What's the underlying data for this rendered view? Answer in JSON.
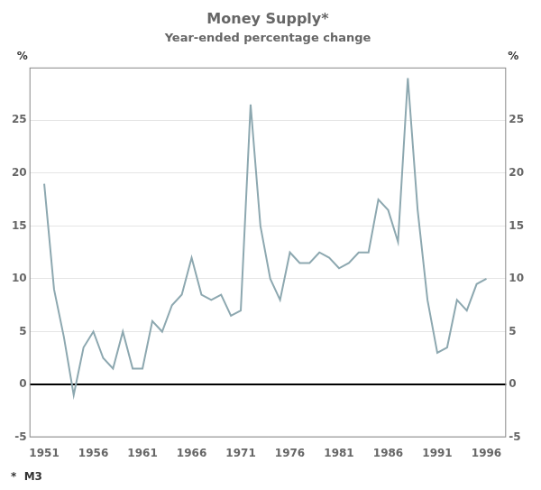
{
  "chart_data": {
    "type": "line",
    "title": "Money Supply*",
    "subtitle": "Year-ended percentage change",
    "annotations": [
      "*  M3"
    ],
    "ylabel": "%",
    "y2label": "%",
    "color": "#8da8b0",
    "x": [
      1951,
      1952,
      1953,
      1954,
      1955,
      1956,
      1957,
      1958,
      1959,
      1960,
      1961,
      1962,
      1963,
      1964,
      1965,
      1966,
      1967,
      1968,
      1969,
      1970,
      1971,
      1972,
      1973,
      1974,
      1975,
      1976,
      1977,
      1978,
      1979,
      1980,
      1981,
      1982,
      1983,
      1984,
      1985,
      1986,
      1987,
      1988,
      1989,
      1990,
      1991,
      1992,
      1993,
      1994,
      1995,
      1996
    ],
    "values": [
      19.0,
      9.0,
      4.5,
      -1.0,
      3.5,
      5.0,
      2.5,
      1.5,
      5.0,
      1.5,
      1.5,
      6.0,
      5.0,
      7.5,
      8.5,
      12.0,
      8.5,
      8.0,
      8.5,
      6.5,
      7.0,
      26.5,
      15.0,
      10.0,
      8.0,
      12.5,
      11.5,
      11.5,
      12.5,
      12.0,
      11.0,
      11.5,
      12.5,
      12.5,
      17.5,
      16.5,
      13.5,
      29.0,
      16.5,
      8.0,
      3.0,
      3.5,
      8.0,
      7.0,
      9.5,
      10.0
    ],
    "xlim": [
      1949.5,
      1998
    ],
    "xticks": [
      1951,
      1956,
      1961,
      1966,
      1971,
      1976,
      1981,
      1986,
      1991,
      1996
    ],
    "ylim": [
      -5,
      30
    ],
    "yticks": [
      -5,
      0,
      5,
      10,
      15,
      20,
      25
    ],
    "y2lim": [
      -5,
      30
    ],
    "y2ticks": [
      -5,
      0,
      5,
      10,
      15,
      20,
      25
    ],
    "grid": true,
    "legend": false
  }
}
